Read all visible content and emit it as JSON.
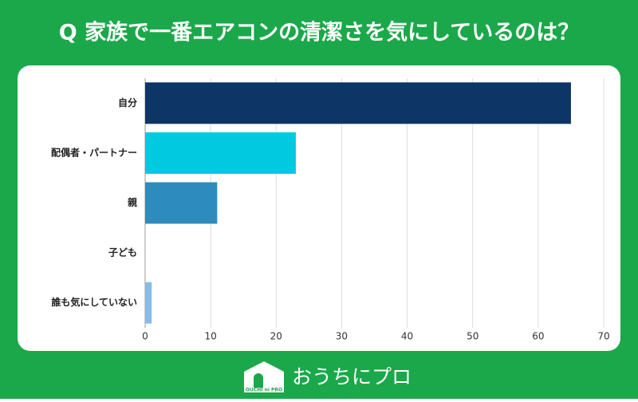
{
  "chart_data": {
    "type": "barh",
    "title": "Q 家族で一番エアコンの清潔さを気にしているのは？",
    "categories": [
      "自分",
      "配偶者・パートナー",
      "親",
      "子ども",
      "誰も気にしていない"
    ],
    "values": [
      65,
      23,
      11,
      0,
      1
    ],
    "colors": [
      "#0d3566",
      "#00c9e0",
      "#2d8cbd",
      "#5aa6d8",
      "#86bce9"
    ],
    "xlim": [
      0,
      70
    ],
    "xticks": [
      0,
      10,
      20,
      30,
      40,
      50,
      60,
      70
    ],
    "grid": true
  },
  "footer": {
    "brand": "おうちにプロ",
    "logo_text": "OUCHI ni PRO"
  }
}
